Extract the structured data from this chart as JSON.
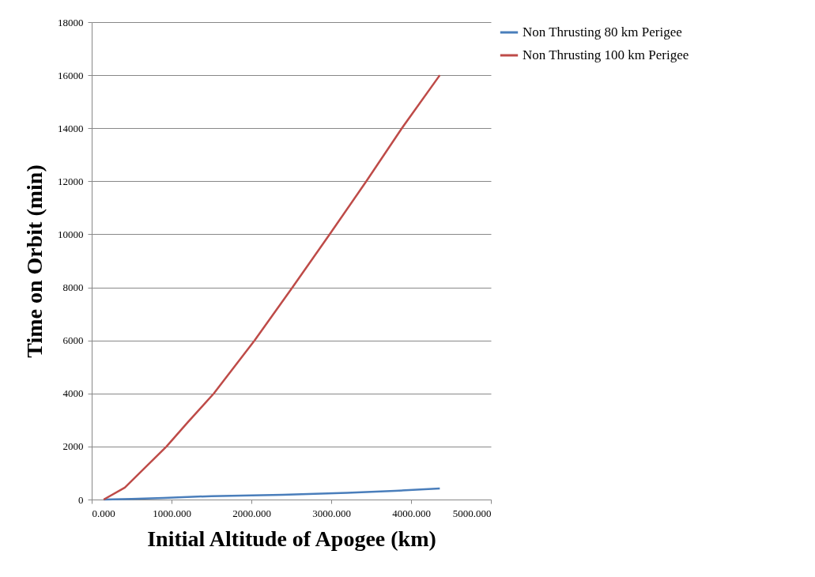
{
  "chart_data": {
    "type": "line",
    "xlabel": "Initial Altitude of Apogee (km)",
    "ylabel": "Time on Orbit (min)",
    "xlim": [
      0,
      5000
    ],
    "xticks": [
      {
        "value": 0,
        "label": "0.000"
      },
      {
        "value": 1000,
        "label": "1000.000"
      },
      {
        "value": 2000,
        "label": "2000.000"
      },
      {
        "value": 3000,
        "label": "3000.000"
      },
      {
        "value": 4000,
        "label": "4000.000"
      },
      {
        "value": 5000,
        "label": "5000.000"
      }
    ],
    "ylim": [
      0,
      18000
    ],
    "yticks": [
      0,
      2000,
      4000,
      6000,
      8000,
      10000,
      12000,
      14000,
      16000,
      18000
    ],
    "grid": "y",
    "legend": "right",
    "marker": "none",
    "line_style": "solid",
    "series": [
      {
        "name": "Non Thrusting 80 km Perigee",
        "color": "#4a7ebb",
        "x": [
          150,
          500,
          900,
          1500,
          2390,
          3200,
          3800,
          4360
        ],
        "values": [
          0,
          20,
          60,
          130,
          180,
          250,
          330,
          420
        ]
      },
      {
        "name": "Non Thrusting 100 km Perigee",
        "color": "#be4b48",
        "x": [
          150,
          415,
          937,
          1200,
          1530,
          2040,
          2515,
          2980,
          3440,
          3885,
          4360
        ],
        "values": [
          0,
          450,
          2000,
          2900,
          4000,
          6000,
          8000,
          10000,
          12000,
          14000,
          16000
        ]
      }
    ]
  }
}
